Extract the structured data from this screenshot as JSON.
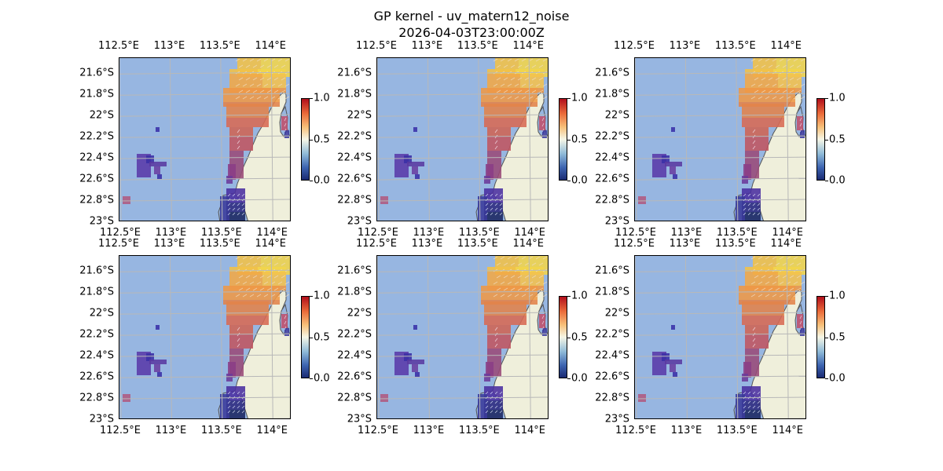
{
  "title": "GP kernel - uv_matern12_noise",
  "subtitle": "2026-04-03T23:00:00Z",
  "lon_ticks": [
    "112.5°E",
    "113°E",
    "113.5°E",
    "114°E"
  ],
  "lon_values": [
    112.5,
    113.0,
    113.5,
    114.0
  ],
  "lat_ticks": [
    "21.6°S",
    "21.8°S",
    "22°S",
    "22.2°S",
    "22.4°S",
    "22.6°S",
    "22.8°S",
    "23°S"
  ],
  "lat_values": [
    -21.6,
    -21.8,
    -22.0,
    -22.2,
    -22.4,
    -22.6,
    -22.8,
    -23.0
  ],
  "extent": {
    "lon": [
      112.5,
      114.2
    ],
    "lat": [
      -23.0,
      -21.45
    ]
  },
  "colorbar": {
    "ticks": [
      "0.0",
      "0.5",
      "1.0"
    ],
    "values": [
      0.0,
      0.5,
      1.0
    ],
    "colormap": "RdYlBu_r"
  },
  "colors": {
    "ocean": "#97b6e1",
    "land": "#efefdb",
    "grid": "#b8b8b8",
    "coast": "#555555"
  },
  "panels": [
    {
      "id": "panel-1",
      "row": 1,
      "col": 1
    },
    {
      "id": "panel-2",
      "row": 1,
      "col": 2
    },
    {
      "id": "panel-3",
      "row": 1,
      "col": 3
    },
    {
      "id": "panel-4",
      "row": 2,
      "col": 1
    },
    {
      "id": "panel-5",
      "row": 2,
      "col": 2
    },
    {
      "id": "panel-6",
      "row": 2,
      "col": 3
    }
  ]
}
